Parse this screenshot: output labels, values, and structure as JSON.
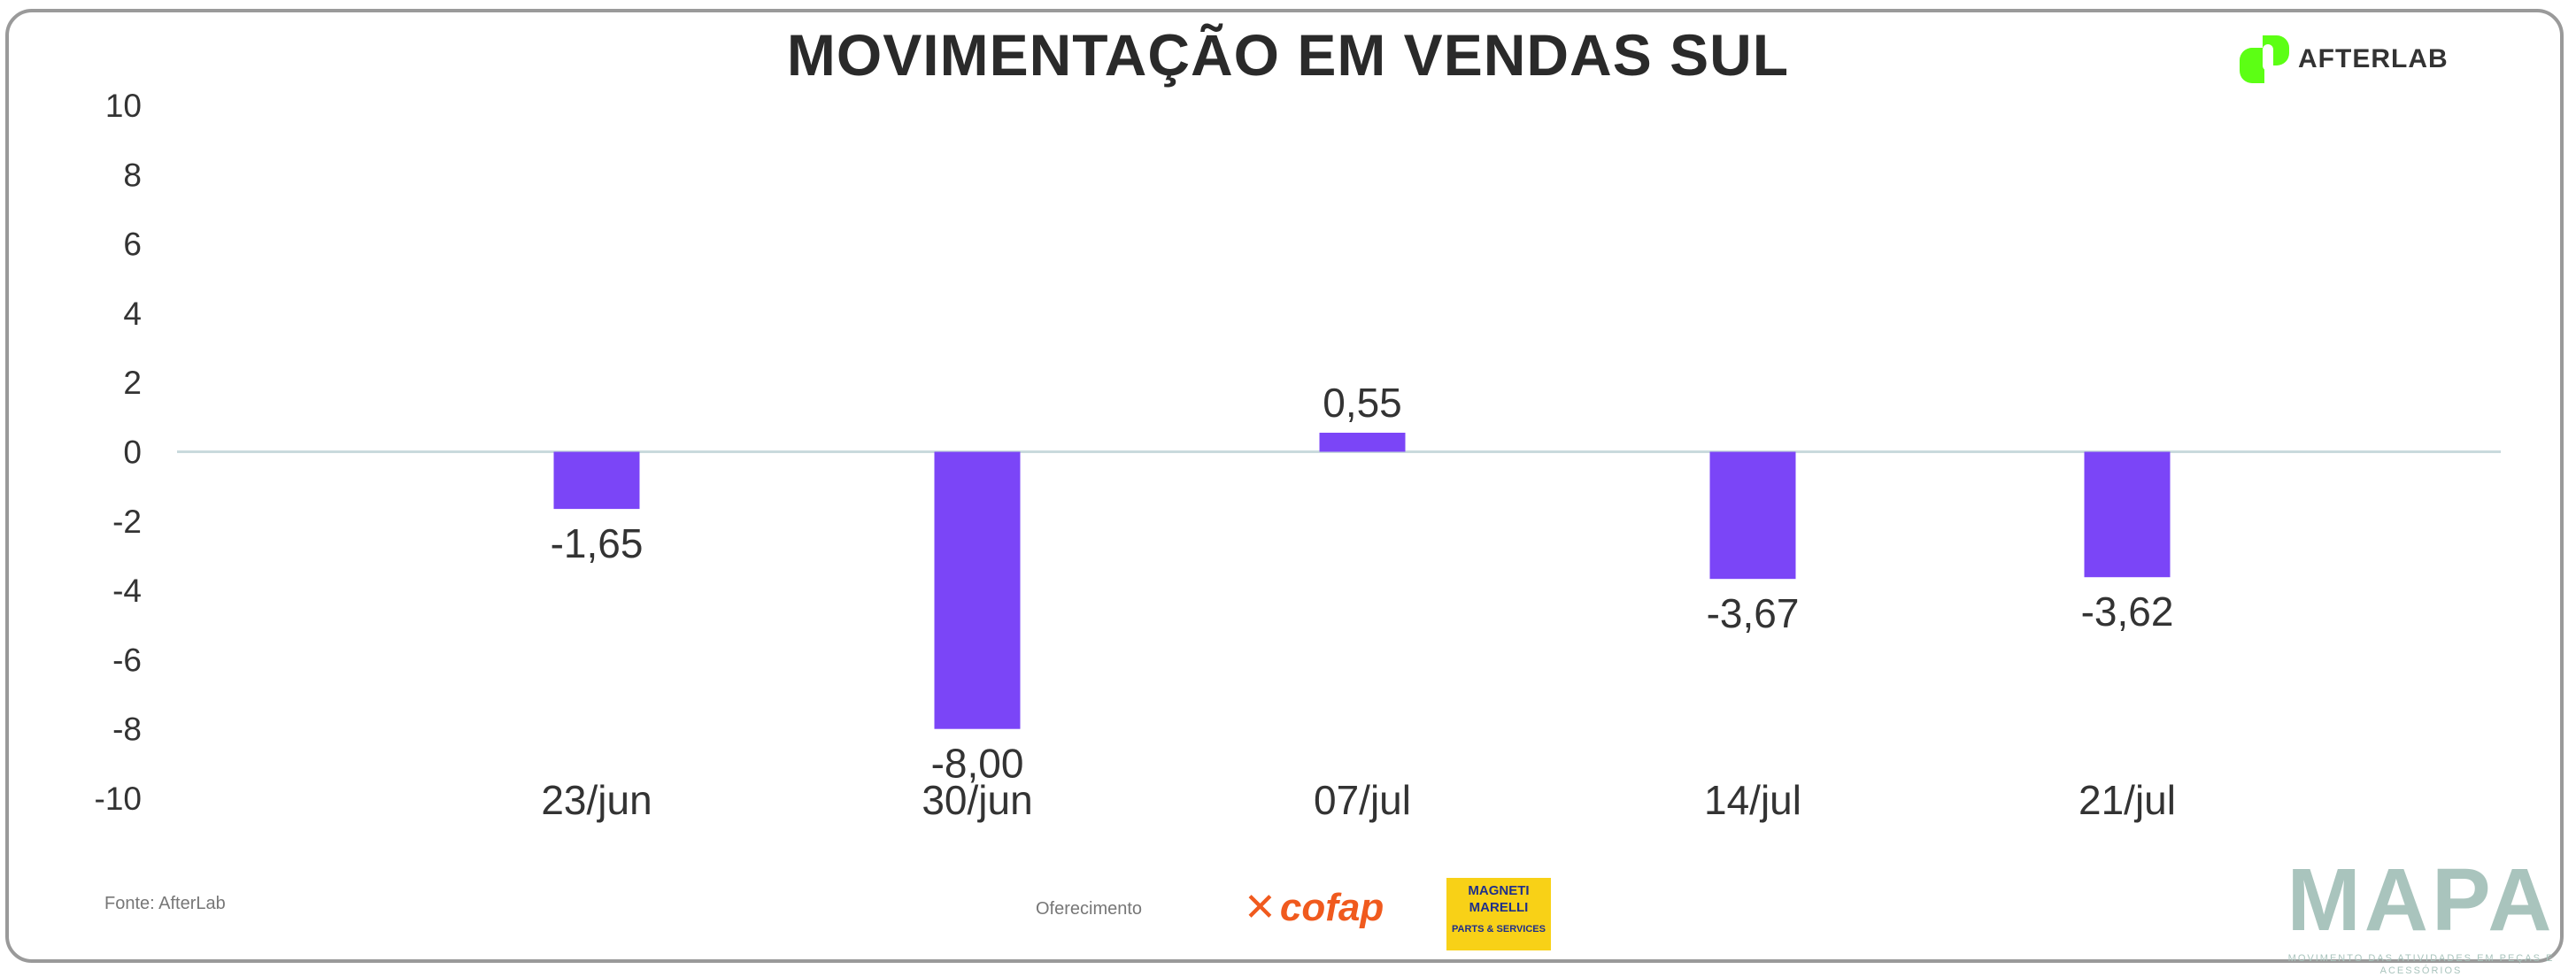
{
  "title": "MOVIMENTAÇÃO EM VENDAS SUL",
  "logo": {
    "text": "AFTERLAB",
    "color": "#5cff14"
  },
  "chart_data": {
    "type": "bar",
    "title": "MOVIMENTAÇÃO EM VENDAS SUL",
    "categories": [
      "23/jun",
      "30/jun",
      "07/jul",
      "14/jul",
      "21/jul"
    ],
    "values": [
      -1.65,
      -8.0,
      0.55,
      -3.67,
      -3.62
    ],
    "data_labels": [
      "-1,65",
      "-8,00",
      "0,55",
      "-3,67",
      "-3,62"
    ],
    "ylim": [
      -10,
      10
    ],
    "yticks": [
      10,
      8,
      6,
      4,
      2,
      0,
      -2,
      -4,
      -6,
      -8,
      -10
    ],
    "grid": false,
    "bar_color": "#7b45f7",
    "xlabel": "",
    "ylabel": ""
  },
  "footer": {
    "source": "Fonte: AfterLab",
    "offered_by": "Oferecimento",
    "sponsor1": "cofap",
    "sponsor2_line1": "MAGNETI",
    "sponsor2_line2": "MARELLI",
    "sponsor2_sub": "PARTS & SERVICES"
  },
  "brand": {
    "name": "MAPA",
    "tagline": "MOVIMENTO DAS ATIVIDADES EM PEÇAS E ACESSÓRIOS"
  }
}
